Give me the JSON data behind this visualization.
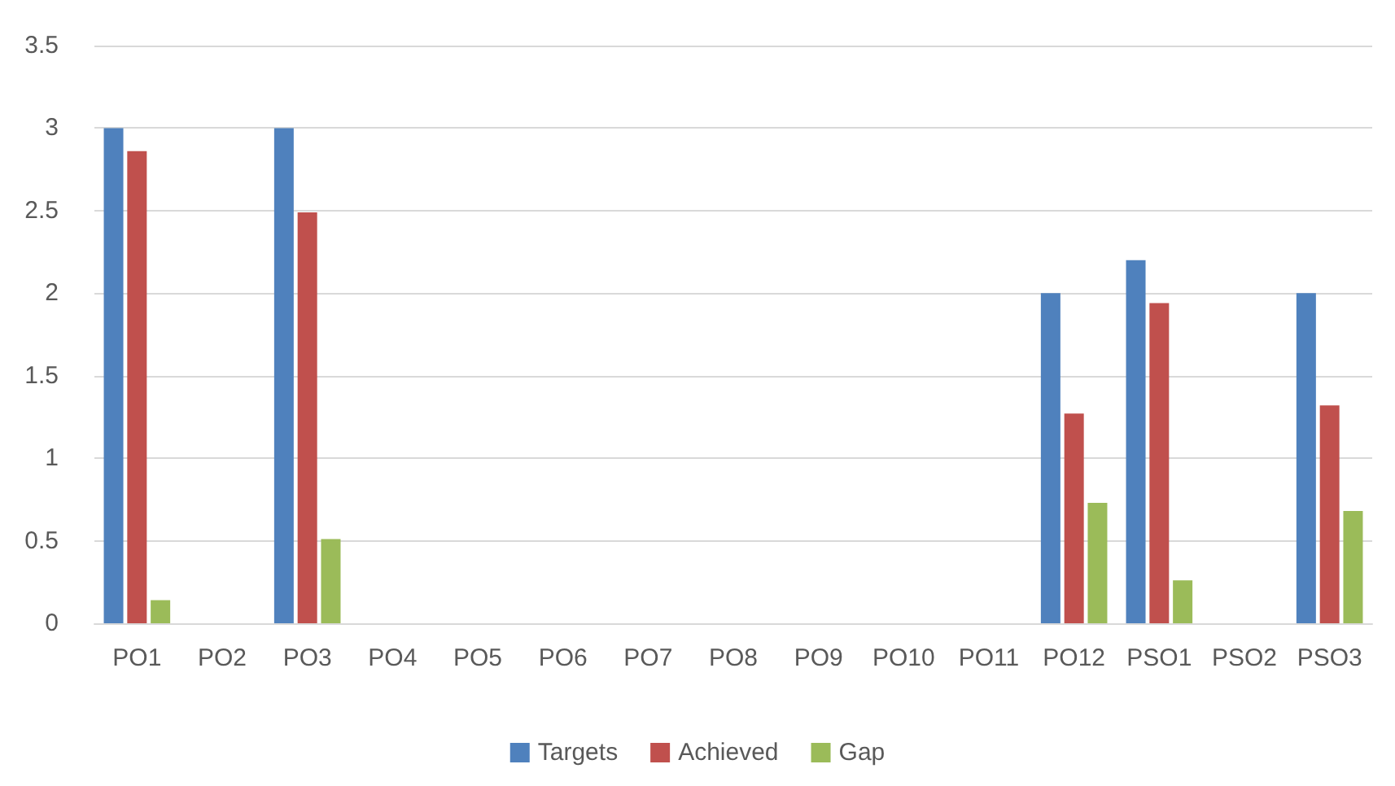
{
  "chart_data": {
    "type": "bar",
    "categories": [
      "PO1",
      "PO2",
      "PO3",
      "PO4",
      "PO5",
      "PO6",
      "PO7",
      "PO8",
      "PO9",
      "PO10",
      "PO11",
      "PO12",
      "PSO1",
      "PSO2",
      "PSO3"
    ],
    "series": [
      {
        "name": "Targets",
        "color": "#4f81bd",
        "values": [
          3,
          null,
          3,
          null,
          null,
          null,
          null,
          null,
          null,
          null,
          null,
          2,
          2.2,
          null,
          2
        ]
      },
      {
        "name": "Achieved",
        "color": "#c0504d",
        "values": [
          2.86,
          null,
          2.49,
          null,
          null,
          null,
          null,
          null,
          null,
          null,
          null,
          1.27,
          1.94,
          null,
          1.32
        ]
      },
      {
        "name": "Gap",
        "color": "#9bbb59",
        "values": [
          0.14,
          null,
          0.51,
          null,
          null,
          null,
          null,
          null,
          null,
          null,
          null,
          0.73,
          0.26,
          null,
          0.68
        ]
      }
    ],
    "ylim": [
      0,
      3.5
    ],
    "yticks": [
      0,
      0.5,
      1,
      1.5,
      2,
      2.5,
      3,
      3.5
    ],
    "grid": "y",
    "legend": "bottom"
  }
}
